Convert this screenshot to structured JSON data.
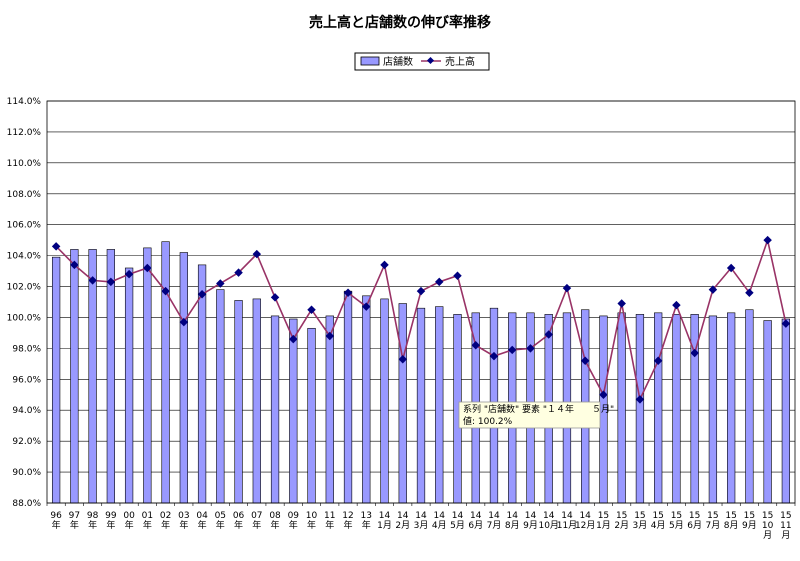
{
  "chart_data": {
    "type": "bar",
    "title": "売上高と店舗数の伸び率推移",
    "y_axis": {
      "min": 88.0,
      "max": 114.0,
      "step": 2.0,
      "tick_suffix": "%",
      "grid": true
    },
    "legend": {
      "placement": "top-center",
      "items": [
        "店舗数",
        "売上高"
      ]
    },
    "categories": [
      [
        "96",
        "年"
      ],
      [
        "97",
        "年"
      ],
      [
        "98",
        "年"
      ],
      [
        "99",
        "年"
      ],
      [
        "00",
        "年"
      ],
      [
        "01",
        "年"
      ],
      [
        "02",
        "年"
      ],
      [
        "03",
        "年"
      ],
      [
        "04",
        "年"
      ],
      [
        "05",
        "年"
      ],
      [
        "06",
        "年"
      ],
      [
        "07",
        "年"
      ],
      [
        "08",
        "年"
      ],
      [
        "09",
        "年"
      ],
      [
        "10",
        "年"
      ],
      [
        "11",
        "年"
      ],
      [
        "12",
        "年"
      ],
      [
        "13",
        "年"
      ],
      [
        "14",
        "1月"
      ],
      [
        "14",
        "2月"
      ],
      [
        "14",
        "3月"
      ],
      [
        "14",
        "4月"
      ],
      [
        "14",
        "5月"
      ],
      [
        "14",
        "6月"
      ],
      [
        "14",
        "7月"
      ],
      [
        "14",
        "8月"
      ],
      [
        "14",
        "9月"
      ],
      [
        "14",
        "10月"
      ],
      [
        "14",
        "11月"
      ],
      [
        "14",
        "12月"
      ],
      [
        "15",
        "1月"
      ],
      [
        "15",
        "2月"
      ],
      [
        "15",
        "3月"
      ],
      [
        "15",
        "4月"
      ],
      [
        "15",
        "5月"
      ],
      [
        "15",
        "6月"
      ],
      [
        "15",
        "7月"
      ],
      [
        "15",
        "8月"
      ],
      [
        "15",
        "9月"
      ],
      [
        "15",
        "10",
        "月"
      ],
      [
        "15",
        "11",
        "月"
      ]
    ],
    "series": [
      {
        "name": "店舗数",
        "type": "bar",
        "color": "#9999ff",
        "values": [
          103.9,
          104.4,
          104.4,
          104.4,
          103.2,
          104.5,
          104.9,
          104.2,
          103.4,
          101.8,
          101.1,
          101.2,
          100.1,
          99.9,
          99.3,
          100.1,
          101.7,
          101.4,
          101.2,
          100.9,
          100.6,
          100.7,
          100.2,
          100.3,
          100.6,
          100.3,
          100.3,
          100.2,
          100.3,
          100.5,
          100.1,
          100.3,
          100.2,
          100.3,
          100.2,
          100.2,
          100.1,
          100.3,
          100.5,
          99.8,
          99.9
        ]
      },
      {
        "name": "売上高",
        "type": "line",
        "color": "#993366",
        "marker_color": "#000080",
        "values": [
          104.6,
          103.4,
          102.4,
          102.3,
          102.8,
          103.2,
          101.7,
          99.7,
          101.5,
          102.2,
          102.9,
          104.1,
          101.3,
          98.6,
          100.5,
          98.8,
          101.6,
          100.7,
          103.4,
          97.3,
          101.7,
          102.3,
          102.7,
          98.2,
          97.5,
          97.9,
          98.0,
          98.9,
          101.9,
          97.2,
          95.0,
          100.9,
          94.7,
          97.2,
          100.8,
          97.7,
          101.8,
          103.2,
          101.6,
          105.0,
          99.6
        ]
      }
    ]
  },
  "tooltip": {
    "line1": "系列 \"店舗数\" 要素 \"１４年　　５月\"",
    "line2": "値: 100.2%"
  }
}
